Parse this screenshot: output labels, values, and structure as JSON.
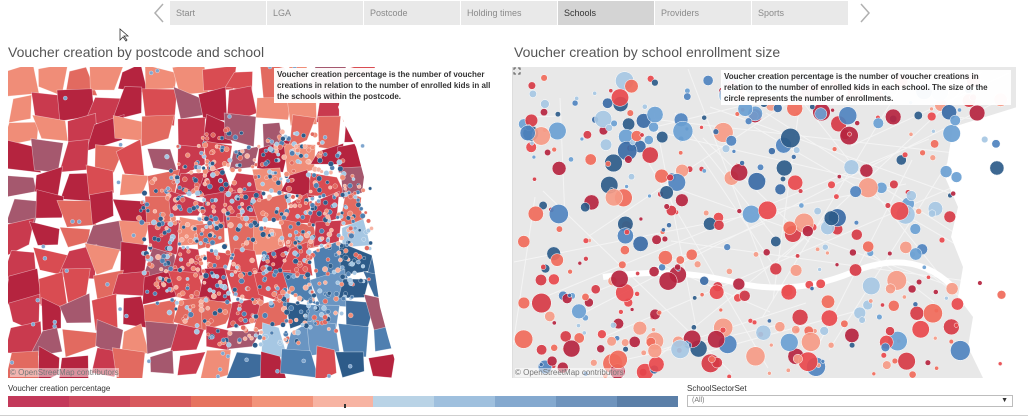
{
  "nav": {
    "tabs": [
      {
        "label": "Start",
        "active": false
      },
      {
        "label": "LGA",
        "active": false
      },
      {
        "label": "Postcode",
        "active": false
      },
      {
        "label": "Holding times",
        "active": false
      },
      {
        "label": "Schools",
        "active": true
      },
      {
        "label": "Providers",
        "active": false
      },
      {
        "label": "Sports",
        "active": false
      }
    ]
  },
  "left_view": {
    "title": "Voucher creation by postcode and school",
    "annotation": "Voucher creation percentage is the number of voucher creations in relation to the number of enrolled kids in all the schools within the postcode.",
    "attribution": "© OpenStreetMap contributors"
  },
  "right_view": {
    "title": "Voucher creation by school enrollment size",
    "annotation": "Voucher creation percentage is the number of voucher creations in relation to the number of enrolled kids in each school. The size of the circle represents the number of enrollments.",
    "attribution": "© OpenStreetMap contributors"
  },
  "legend": {
    "title": "Voucher creation percentage",
    "colors": [
      "#c3395a",
      "#cc4a5e",
      "#d85a5e",
      "#e6735f",
      "#f2937a",
      "#f7b3a2",
      "#b9d3e6",
      "#9fc0de",
      "#84a9cf",
      "#6f94bd",
      "#5b7fa8"
    ]
  },
  "filter": {
    "title": "SchoolSectorSet",
    "value": "(All)"
  },
  "colors": {
    "red_dark": "#b5243f",
    "red": "#d94c52",
    "salmon": "#f08d78",
    "blue_light": "#a6c7e3",
    "blue": "#4f7fb0",
    "blue_dark": "#2d5b89"
  }
}
